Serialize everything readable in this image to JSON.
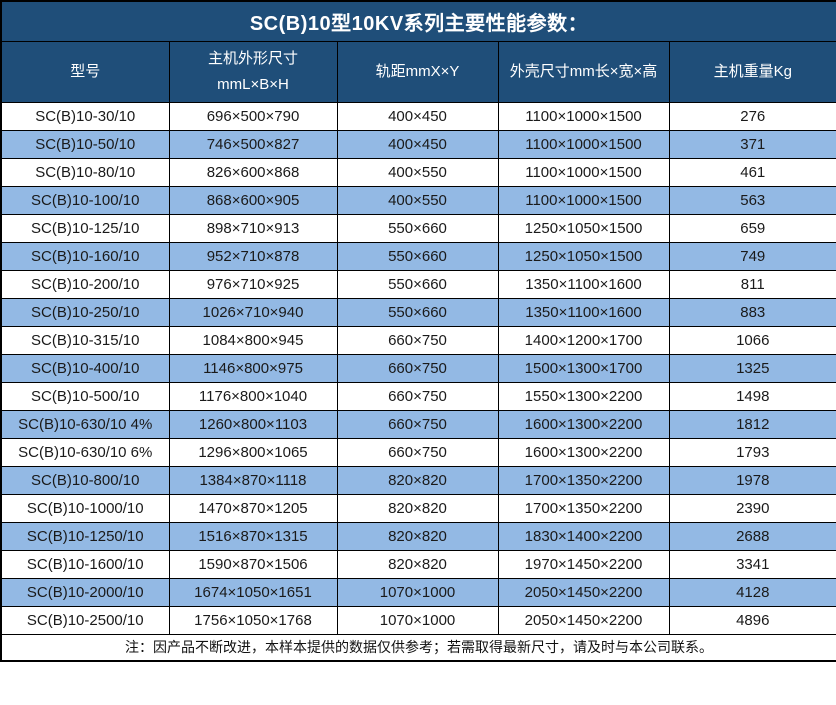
{
  "chart_data": {
    "type": "table",
    "title": "SC(B)10型10KV系列主要性能参数：",
    "columns": [
      "型号",
      "主机外形尺寸\nmmL×B×H",
      "轨距mmX×Y",
      "外壳尺寸mm长×宽×高",
      "主机重量Kg"
    ],
    "rows": [
      [
        "SC(B)10-30/10",
        "696×500×790",
        "400×450",
        "1100×1000×1500",
        "276"
      ],
      [
        "SC(B)10-50/10",
        "746×500×827",
        "400×450",
        "1100×1000×1500",
        "371"
      ],
      [
        "SC(B)10-80/10",
        "826×600×868",
        "400×550",
        "1100×1000×1500",
        "461"
      ],
      [
        "SC(B)10-100/10",
        "868×600×905",
        "400×550",
        "1100×1000×1500",
        "563"
      ],
      [
        "SC(B)10-125/10",
        "898×710×913",
        "550×660",
        "1250×1050×1500",
        "659"
      ],
      [
        "SC(B)10-160/10",
        "952×710×878",
        "550×660",
        "1250×1050×1500",
        "749"
      ],
      [
        "SC(B)10-200/10",
        "976×710×925",
        "550×660",
        "1350×1100×1600",
        "811"
      ],
      [
        "SC(B)10-250/10",
        "1026×710×940",
        "550×660",
        "1350×1100×1600",
        "883"
      ],
      [
        "SC(B)10-315/10",
        "1084×800×945",
        "660×750",
        "1400×1200×1700",
        "1066"
      ],
      [
        "SC(B)10-400/10",
        "1146×800×975",
        "660×750",
        "1500×1300×1700",
        "1325"
      ],
      [
        "SC(B)10-500/10",
        "1176×800×1040",
        "660×750",
        "1550×1300×2200",
        "1498"
      ],
      [
        "SC(B)10-630/10 4%",
        "1260×800×1103",
        "660×750",
        "1600×1300×2200",
        "1812"
      ],
      [
        "SC(B)10-630/10 6%",
        "1296×800×1065",
        "660×750",
        "1600×1300×2200",
        "1793"
      ],
      [
        "SC(B)10-800/10",
        "1384×870×1118",
        "820×820",
        "1700×1350×2200",
        "1978"
      ],
      [
        "SC(B)10-1000/10",
        "1470×870×1205",
        "820×820",
        "1700×1350×2200",
        "2390"
      ],
      [
        "SC(B)10-1250/10",
        "1516×870×1315",
        "820×820",
        "1830×1400×2200",
        "2688"
      ],
      [
        "SC(B)10-1600/10",
        "1590×870×1506",
        "820×820",
        "1970×1450×2200",
        "3341"
      ],
      [
        "SC(B)10-2000/10",
        "1674×1050×1651",
        "1070×1000",
        "2050×1450×2200",
        "4128"
      ],
      [
        "SC(B)10-2500/10",
        "1756×1050×1768",
        "1070×1000",
        "2050×1450×2200",
        "4896"
      ]
    ]
  },
  "note": "注：因产品不断改进，本样本提供的数据仅供参考；若需取得最新尺寸，请及时与本公司联系。",
  "colors": {
    "header_bg": "#1F4E79",
    "row_alt_bg": "#93B9E4",
    "border": "#000000",
    "header_text": "#FFFFFF",
    "body_text": "#1A1A1A"
  }
}
